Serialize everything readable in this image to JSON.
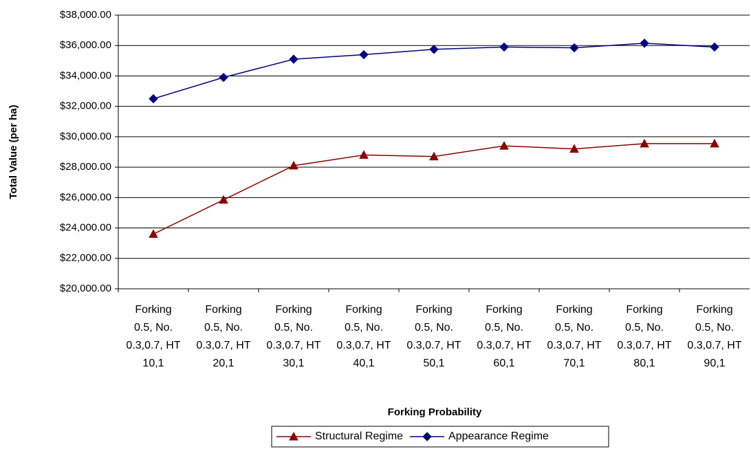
{
  "chart_data": {
    "type": "line",
    "x_label": "Forking Probability",
    "y_label": "Total Value (per ha)",
    "categories": [
      "Forking 0.5, No. 0.3,0.7, HT 10,1",
      "Forking 0.5, No. 0.3,0.7, HT 20,1",
      "Forking 0.5, No. 0.3,0.7, HT 30,1",
      "Forking 0.5, No. 0.3,0.7, HT 40,1",
      "Forking 0.5, No. 0.3,0.7, HT 50,1",
      "Forking 0.5, No. 0.3,0.7, HT 60,1",
      "Forking 0.5, No. 0.3,0.7, HT 70,1",
      "Forking 0.5, No. 0.3,0.7, HT 80,1",
      "Forking 0.5, No. 0.3,0.7, HT 90,1"
    ],
    "series": [
      {
        "name": "Structural Regime",
        "color": "#8b0000",
        "marker": "triangle",
        "values": [
          23600,
          25850,
          28100,
          28800,
          28700,
          29400,
          29200,
          29550,
          29550
        ]
      },
      {
        "name": "Appearance Regime",
        "color": "#000080",
        "marker": "diamond",
        "values": [
          32500,
          33900,
          35100,
          35400,
          35750,
          35900,
          35850,
          36150,
          35900
        ]
      }
    ],
    "ylim": [
      20000,
      38000
    ],
    "yticks": [
      {
        "value": 20000,
        "label": "$20,000.00"
      },
      {
        "value": 22000,
        "label": "$22,000.00"
      },
      {
        "value": 24000,
        "label": "$24,000.00"
      },
      {
        "value": 26000,
        "label": "$26,000.00"
      },
      {
        "value": 28000,
        "label": "$28,000.00"
      },
      {
        "value": 30000,
        "label": "$30,000.00"
      },
      {
        "value": 32000,
        "label": "$32,000.00"
      },
      {
        "value": 34000,
        "label": "$34,000.00"
      },
      {
        "value": 36000,
        "label": "$36,000.00"
      },
      {
        "value": 38000,
        "label": "$38,000.00"
      }
    ],
    "grid": true,
    "legend": "bottom"
  }
}
